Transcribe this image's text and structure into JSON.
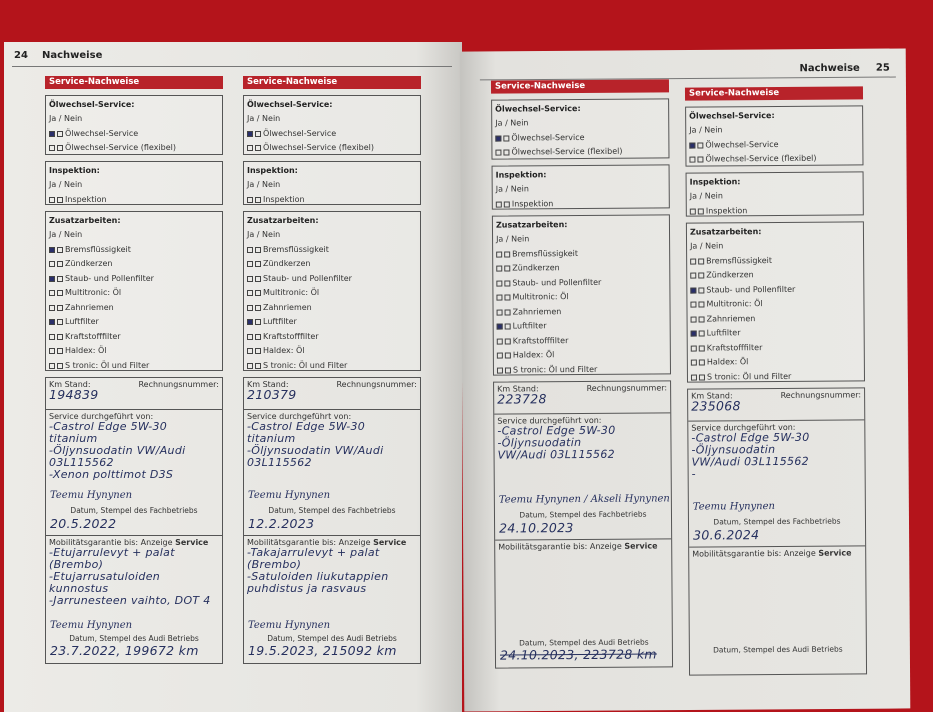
{
  "left_page": {
    "number": "24",
    "header": "Nachweise"
  },
  "right_page": {
    "number": "25",
    "header": "Nachweise"
  },
  "labels": {
    "section_title": "Service-Nachweise",
    "oil_title": "Ölwechsel-Service:",
    "ja_nein": "Ja / Nein",
    "oil_items": [
      "Ölwechsel-Service",
      "Ölwechsel-Service (flexibel)"
    ],
    "inspection_title": "Inspektion:",
    "inspection_items": [
      "Inspektion"
    ],
    "extra_title": "Zusatzarbeiten:",
    "extra_items": [
      "Bremsflüssigkeit",
      "Zündkerzen",
      "Staub- und Pollenfilter",
      "Multitronic: Öl",
      "Zahnriemen",
      "Luftfilter",
      "Kraftstofffilter",
      "Haldex: Öl",
      "S tronic: Öl und Filter"
    ],
    "km_label": "Km Stand:",
    "invoice_label": "Rechnungsnummer:",
    "service_by_label": "Service durchgeführt von:",
    "stamp_dealer": "Datum, Stempel des Fachbetriebs",
    "mobility_label": "Mobilitätsgarantie bis: Anzeige ",
    "mobility_bold": "Service",
    "stamp_audi": "Datum, Stempel des Audi Betriebs"
  },
  "records": [
    {
      "oil_checked": [
        true,
        false
      ],
      "inspection_checked": [
        false
      ],
      "extra_checked": [
        true,
        false,
        true,
        false,
        false,
        true,
        false,
        false,
        false
      ],
      "km": "194839",
      "service_lines": [
        "-Castrol Edge 5W-30 titanium",
        "-Öljynsuodatin VW/Audi",
        "03L115562",
        "-Xenon polttimot D3S"
      ],
      "signature": "Teemu Hynynen",
      "service_date": "20.5.2022",
      "mobility_lines": [
        "-Etujarrulevyt + palat (Brembo)",
        "-Etujarrusatuloiden kunnostus",
        "-Jarrunesteen vaihto, DOT 4"
      ],
      "mobility_signature": "Teemu Hynynen",
      "mobility_date": "23.7.2022, 199672 km",
      "mobility_struck": false
    },
    {
      "oil_checked": [
        true,
        false
      ],
      "inspection_checked": [
        false
      ],
      "extra_checked": [
        false,
        false,
        false,
        false,
        false,
        true,
        false,
        false,
        false
      ],
      "km": "210379",
      "service_lines": [
        "-Castrol Edge 5W-30 titanium",
        "-Öljynsuodatin VW/Audi",
        "03L115562"
      ],
      "signature": "Teemu Hynynen",
      "service_date": "12.2.2023",
      "mobility_lines": [
        "-Takajarrulevyt + palat",
        "(Brembo)",
        "-Satuloiden liukutappien",
        "puhdistus ja rasvaus"
      ],
      "mobility_signature": "Teemu Hynynen",
      "mobility_date": "19.5.2023, 215092 km",
      "mobility_struck": false
    },
    {
      "oil_checked": [
        true,
        false
      ],
      "inspection_checked": [
        false
      ],
      "extra_checked": [
        false,
        false,
        false,
        false,
        false,
        true,
        false,
        false,
        false
      ],
      "km": "223728",
      "service_lines": [
        "-Castrol Edge 5W-30",
        "-Öljynsuodatin",
        "VW/Audi 03L115562"
      ],
      "signature": "Teemu Hynynen / Akseli Hynynen",
      "service_date": "24.10.2023",
      "mobility_lines": [],
      "mobility_signature": "",
      "mobility_date": "24.10.2023, 223728 km",
      "mobility_struck": true
    },
    {
      "oil_checked": [
        true,
        false
      ],
      "inspection_checked": [
        false
      ],
      "extra_checked": [
        false,
        false,
        true,
        false,
        false,
        true,
        false,
        false,
        false
      ],
      "km": "235068",
      "service_lines": [
        "-Castrol Edge 5W-30",
        "-Öljynsuodatin",
        "VW/Audi 03L115562",
        "-"
      ],
      "signature": "Teemu Hynynen",
      "service_date": "30.6.2024",
      "mobility_lines": [],
      "mobility_signature": "",
      "mobility_date": "",
      "mobility_struck": false
    }
  ]
}
